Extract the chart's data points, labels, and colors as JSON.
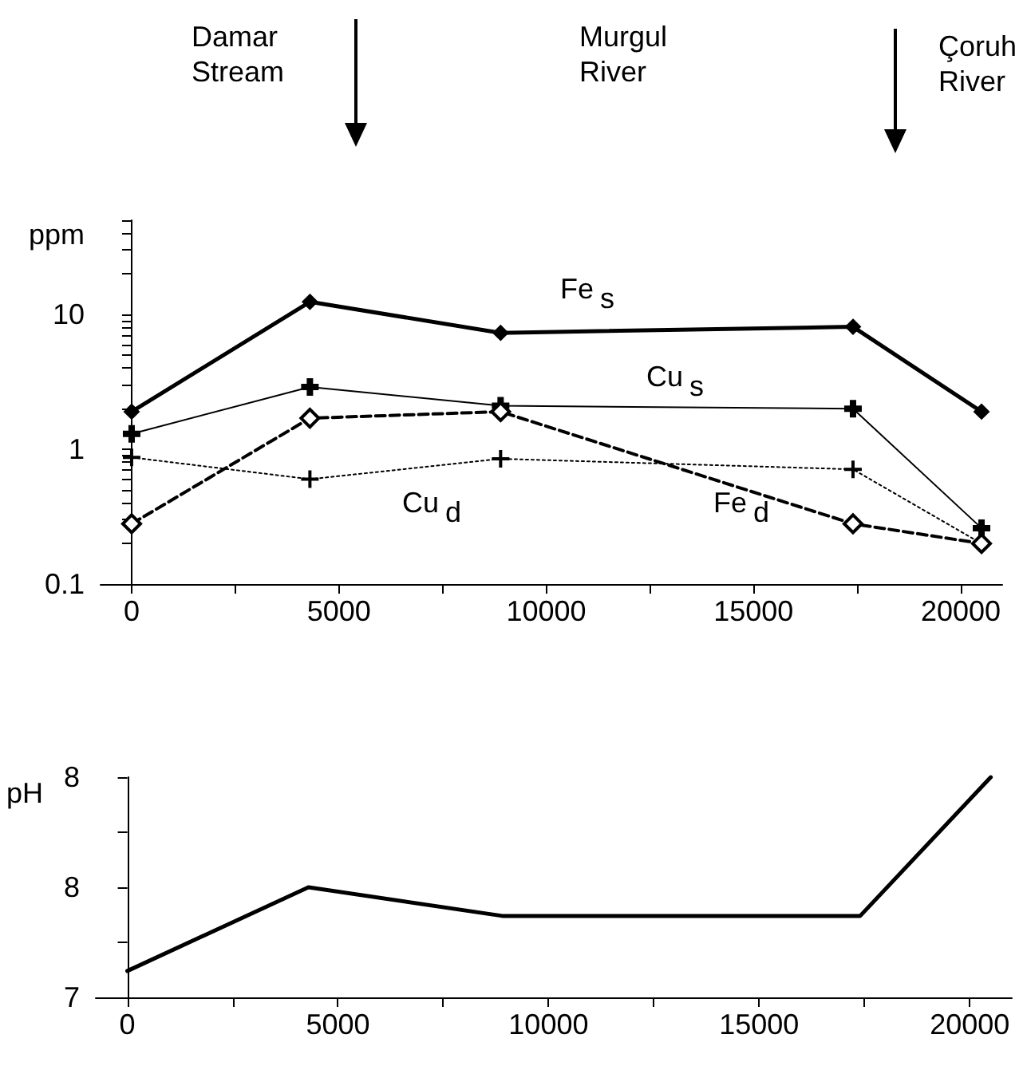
{
  "chart_data": [
    {
      "type": "line",
      "ylabel": "ppm",
      "log": "y",
      "grid": false,
      "annotations": [
        "Damar Stream",
        "Murgul River",
        "Çoruh River"
      ],
      "x": [
        0,
        4300,
        8900,
        17400,
        20500
      ],
      "xlim": [
        -750,
        21000
      ],
      "xticks": [
        0,
        {
          "value": 2500,
          "label": null
        },
        5000,
        {
          "value": 7500,
          "label": null
        },
        10000,
        {
          "value": 12500,
          "label": null
        },
        15000,
        {
          "value": 17500,
          "label": null
        },
        20000
      ],
      "ylim": [
        0.1,
        50
      ],
      "yticks": [
        0.1,
        {
          "value": 0.2,
          "label": null
        },
        {
          "value": 0.3,
          "label": null
        },
        {
          "value": 0.4,
          "label": null
        },
        {
          "value": 0.5,
          "label": null
        },
        {
          "value": 0.6,
          "label": null
        },
        {
          "value": 0.7,
          "label": null
        },
        {
          "value": 0.8,
          "label": null
        },
        {
          "value": 0.9,
          "label": null
        },
        1,
        {
          "value": 2,
          "label": null
        },
        {
          "value": 3,
          "label": null
        },
        {
          "value": 4,
          "label": null
        },
        {
          "value": 5,
          "label": null
        },
        {
          "value": 6,
          "label": null
        },
        {
          "value": 7,
          "label": null
        },
        {
          "value": 8,
          "label": null
        },
        {
          "value": 9,
          "label": null
        },
        10,
        {
          "value": 20,
          "label": null
        },
        {
          "value": 30,
          "label": null
        },
        {
          "value": 40,
          "label": null
        },
        {
          "value": 50,
          "label": null
        }
      ],
      "series": [
        {
          "name": "Fe$_{s}$",
          "color": "#000000",
          "marker": "diamond",
          "line_style": "solid",
          "values": [
            1.9,
            12.4,
            7.3,
            8.1,
            1.9
          ]
        },
        {
          "name": "Cu$_{s}$",
          "color": "#000000",
          "marker": "cross",
          "line_style": "solid",
          "values": [
            1.3,
            2.9,
            2.1,
            2.0,
            0.26
          ]
        },
        {
          "name": "Cu$_{d}$",
          "color": "#000000",
          "marker": "cross",
          "line_style": "dotted",
          "values": [
            0.87,
            0.6,
            0.85,
            0.71,
            0.2
          ]
        },
        {
          "name": "Fe$_{d}$",
          "color": "#000000",
          "marker": "diamond",
          "line_style": "dashed",
          "values": [
            0.28,
            1.7,
            1.9,
            0.28,
            0.2
          ]
        }
      ]
    },
    {
      "type": "line",
      "ylabel": "pH",
      "grid": false,
      "x": [
        0,
        4300,
        8900,
        17400,
        20500
      ],
      "xlim": [
        -750,
        21000
      ],
      "xticks": [
        0,
        {
          "value": 2500,
          "label": null
        },
        5000,
        {
          "value": 7500,
          "label": null
        },
        10000,
        {
          "value": 12500,
          "label": null
        },
        15000,
        {
          "value": 17500,
          "label": null
        },
        20000
      ],
      "ylim": [
        7,
        8
      ],
      "yticks": [
        7,
        {
          "value": 7.25,
          "label": null
        },
        {
          "value": 7.5,
          "label": "8"
        },
        {
          "value": 7.75,
          "label": null
        },
        {
          "value": 8,
          "label": "8"
        }
      ],
      "series": [
        {
          "color": "#000000",
          "line_style": "solid",
          "values": [
            7.12,
            7.5,
            7.37,
            7.37,
            8.0
          ]
        }
      ]
    }
  ]
}
